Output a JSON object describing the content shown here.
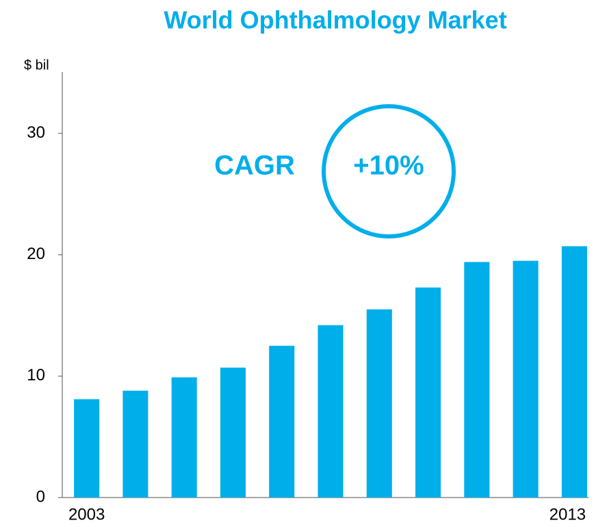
{
  "chart_data": {
    "type": "bar",
    "title": "World Ophthalmology Market",
    "y_axis_label": "$ bil",
    "categories": [
      "2003",
      null,
      null,
      null,
      null,
      null,
      null,
      null,
      null,
      null,
      "2013"
    ],
    "values": [
      8.1,
      8.8,
      9.9,
      10.7,
      12.5,
      14.2,
      15.5,
      17.3,
      19.4,
      19.5,
      20.7
    ],
    "color": "#00aeea",
    "ylim": [
      0,
      35
    ],
    "yticks": [
      0,
      10,
      20,
      30
    ],
    "grid": false,
    "annotations": [
      "CAGR",
      "+10%"
    ]
  }
}
